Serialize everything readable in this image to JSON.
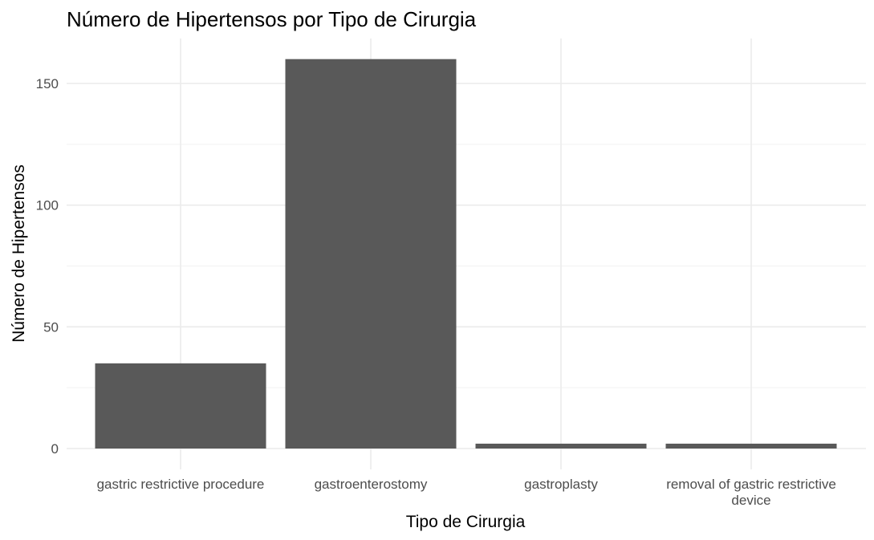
{
  "chart_data": {
    "type": "bar",
    "title": "Número de Hipertensos por Tipo de Cirurgia",
    "xlabel": "Tipo de Cirurgia",
    "ylabel": "Número de Hipertensos",
    "categories": [
      [
        "gastric restrictive procedure"
      ],
      [
        "gastroenterostomy"
      ],
      [
        "gastroplasty"
      ],
      [
        "removal of gastric restrictive",
        "device"
      ]
    ],
    "values": [
      35,
      160,
      2,
      2
    ],
    "ylim": [
      0,
      168
    ],
    "yticks": [
      0,
      50,
      100,
      150
    ],
    "bar_color": "#595959",
    "grid": true,
    "legend": "none"
  }
}
